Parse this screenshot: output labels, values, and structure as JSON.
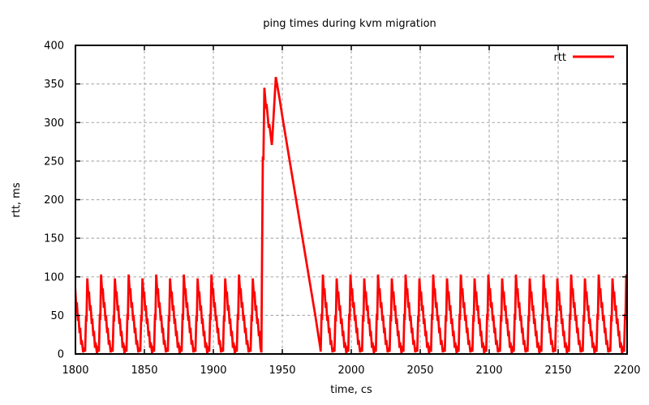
{
  "chart_data": {
    "type": "line",
    "title": "ping times during kvm migration",
    "xlabel": "time, cs",
    "ylabel": "rtt, ms",
    "xlim": [
      1800,
      2200
    ],
    "ylim": [
      0,
      400
    ],
    "xticks": [
      1800,
      1850,
      1900,
      1950,
      2000,
      2050,
      2100,
      2150,
      2200
    ],
    "yticks": [
      0,
      50,
      100,
      150,
      200,
      250,
      300,
      350,
      400
    ],
    "grid": true,
    "legend": {
      "position": "top-right-inside",
      "entries": [
        {
          "label": "rtt",
          "color": "#ff0000"
        }
      ]
    },
    "series": [
      {
        "name": "rtt",
        "color": "#ff0000",
        "sawtooth_cycle": [
          [
            0.0,
            3
          ],
          [
            0.7,
            52
          ],
          [
            1.0,
            44
          ],
          [
            1.6,
            103
          ],
          [
            2.4,
            78
          ],
          [
            2.8,
            85
          ],
          [
            3.6,
            60
          ],
          [
            4.0,
            67
          ],
          [
            4.8,
            43
          ],
          [
            5.2,
            50
          ],
          [
            6.0,
            27
          ],
          [
            6.4,
            34
          ],
          [
            7.2,
            12
          ],
          [
            7.6,
            18
          ],
          [
            8.6,
            2
          ],
          [
            9.0,
            8
          ],
          [
            10.0,
            3
          ],
          [
            10.7,
            50
          ],
          [
            11.0,
            42
          ],
          [
            11.6,
            98
          ],
          [
            12.4,
            74
          ],
          [
            12.8,
            81
          ],
          [
            13.6,
            56
          ],
          [
            14.0,
            63
          ],
          [
            14.8,
            39
          ],
          [
            15.2,
            46
          ],
          [
            16.0,
            23
          ],
          [
            16.4,
            30
          ],
          [
            17.2,
            8
          ],
          [
            17.6,
            15
          ],
          [
            18.6,
            1
          ],
          [
            19.0,
            7
          ]
        ],
        "segments": [
          {
            "kind": "pattern",
            "start": 1797.0,
            "end": 1934.4,
            "period": 20
          },
          {
            "kind": "points",
            "points": [
              [
                1934.8,
                2
              ],
              [
                1935.3,
                120
              ],
              [
                1935.9,
                256
              ],
              [
                1936.3,
                251
              ],
              [
                1937.0,
                345
              ],
              [
                1938.2,
                318
              ],
              [
                1938.6,
                324
              ],
              [
                1940.2,
                293
              ],
              [
                1940.6,
                298
              ],
              [
                1942.4,
                271
              ],
              [
                1943.4,
                300
              ],
              [
                1945.3,
                359
              ],
              [
                1948.0,
                331
              ],
              [
                1950.0,
                308
              ],
              [
                1955.0,
                254
              ],
              [
                1960.0,
                200
              ],
              [
                1965.0,
                146
              ],
              [
                1970.0,
                92
              ],
              [
                1974.0,
                49
              ],
              [
                1977.5,
                8
              ]
            ]
          },
          {
            "kind": "pattern",
            "start": 1977.8,
            "end": 2203.0,
            "period": 20
          }
        ]
      }
    ]
  },
  "colors": {
    "background": "#ffffff",
    "plot_border": "#000000",
    "grid": "#b0b0b0",
    "text": "#000000",
    "series_rtt": "#ff0000"
  }
}
